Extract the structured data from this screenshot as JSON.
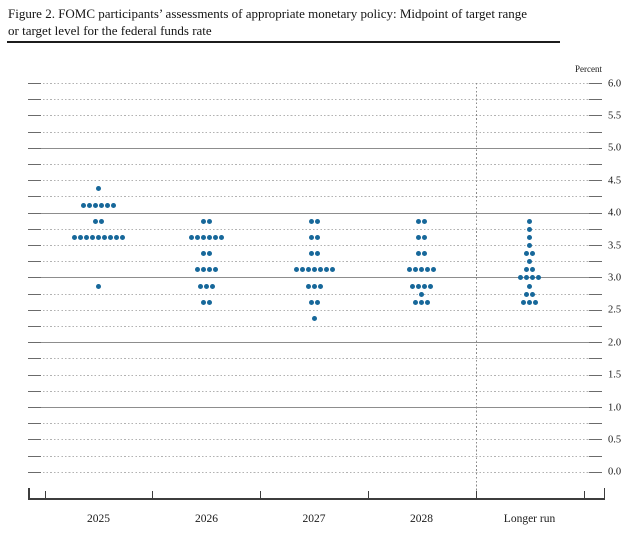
{
  "title": {
    "line1": "Figure 2. FOMC participants’ assessments of appropriate monetary policy: Midpoint of target range",
    "line2": "or target level for the federal funds rate"
  },
  "chart_data": {
    "type": "scatter",
    "subtype": "fomc-dot-plot",
    "title": "Figure 2. FOMC participants’ assessments of appropriate monetary policy: Midpoint of target range or target level for the federal funds rate",
    "unit_label": "Percent",
    "ylim": [
      0.0,
      6.0
    ],
    "y_gridline_step": 0.25,
    "y_label_step": 0.5,
    "y_labels": [
      "6.0",
      "5.5",
      "5.0",
      "4.5",
      "4.0",
      "3.5",
      "3.0",
      "2.5",
      "2.0",
      "1.5",
      "1.0",
      "0.5",
      "0.0"
    ],
    "solid_gridlines": [
      5.0,
      4.0,
      3.0,
      2.0,
      1.0
    ],
    "grid": true,
    "legend": "none",
    "categories": [
      "2025",
      "2026",
      "2027",
      "2028",
      "Longer run"
    ],
    "separator_before_category": "Longer run",
    "dot_color": "#17689a",
    "participants_per_column": 19,
    "series": [
      {
        "category": "2025",
        "dots": [
          {
            "rate": 4.375,
            "count": 1
          },
          {
            "rate": 4.125,
            "count": 6
          },
          {
            "rate": 3.875,
            "count": 2
          },
          {
            "rate": 3.625,
            "count": 9
          },
          {
            "rate": 2.875,
            "count": 1
          }
        ]
      },
      {
        "category": "2026",
        "dots": [
          {
            "rate": 3.875,
            "count": 2
          },
          {
            "rate": 3.625,
            "count": 6
          },
          {
            "rate": 3.375,
            "count": 2
          },
          {
            "rate": 3.125,
            "count": 4
          },
          {
            "rate": 2.875,
            "count": 3
          },
          {
            "rate": 2.625,
            "count": 2
          }
        ]
      },
      {
        "category": "2027",
        "dots": [
          {
            "rate": 3.875,
            "count": 2
          },
          {
            "rate": 3.625,
            "count": 2
          },
          {
            "rate": 3.375,
            "count": 2
          },
          {
            "rate": 3.125,
            "count": 7
          },
          {
            "rate": 2.875,
            "count": 3
          },
          {
            "rate": 2.625,
            "count": 2
          },
          {
            "rate": 2.375,
            "count": 1
          }
        ]
      },
      {
        "category": "2028",
        "dots": [
          {
            "rate": 3.875,
            "count": 2
          },
          {
            "rate": 3.625,
            "count": 2
          },
          {
            "rate": 3.375,
            "count": 2
          },
          {
            "rate": 3.125,
            "count": 5
          },
          {
            "rate": 2.875,
            "count": 4
          },
          {
            "rate": 2.75,
            "count": 1
          },
          {
            "rate": 2.625,
            "count": 3
          }
        ]
      },
      {
        "category": "Longer run",
        "dots": [
          {
            "rate": 3.875,
            "count": 1
          },
          {
            "rate": 3.75,
            "count": 1
          },
          {
            "rate": 3.625,
            "count": 1
          },
          {
            "rate": 3.5,
            "count": 1
          },
          {
            "rate": 3.375,
            "count": 2
          },
          {
            "rate": 3.25,
            "count": 1
          },
          {
            "rate": 3.125,
            "count": 2
          },
          {
            "rate": 3.0,
            "count": 4
          },
          {
            "rate": 2.875,
            "count": 1
          },
          {
            "rate": 2.75,
            "count": 2
          },
          {
            "rate": 2.625,
            "count": 3
          }
        ]
      }
    ]
  }
}
